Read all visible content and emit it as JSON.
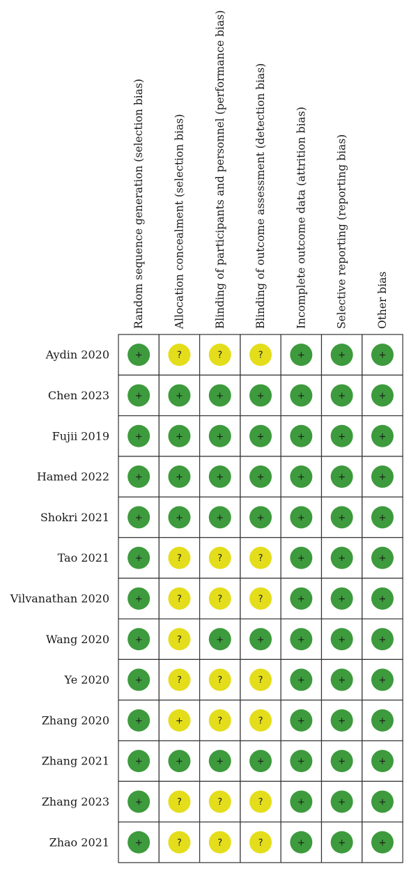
{
  "chart_data": {
    "type": "table",
    "columns": [
      "Random sequence generation (selection bias)",
      "Allocation concealment (selection bias)",
      "Blinding of participants and personnel (performance bias)",
      "Blinding of outcome assessment (detection bias)",
      "Incomplete outcome data (attrition bias)",
      "Selective reporting (reporting bias)",
      "Other bias"
    ],
    "rows": [
      {
        "study": "Aydin 2020",
        "ratings": [
          "low",
          "unclear",
          "unclear",
          "unclear",
          "low",
          "low",
          "low"
        ]
      },
      {
        "study": "Chen 2023",
        "ratings": [
          "low",
          "low",
          "low",
          "low",
          "low",
          "low",
          "low"
        ]
      },
      {
        "study": "Fujii 2019",
        "ratings": [
          "low",
          "low",
          "low",
          "low",
          "low",
          "low",
          "low"
        ]
      },
      {
        "study": "Hamed 2022",
        "ratings": [
          "low",
          "low",
          "low",
          "low",
          "low",
          "low",
          "low"
        ]
      },
      {
        "study": "Shokri 2021",
        "ratings": [
          "low",
          "low",
          "low",
          "low",
          "low",
          "low",
          "low"
        ]
      },
      {
        "study": "Tao 2021",
        "ratings": [
          "low",
          "unclear",
          "unclear",
          "unclear",
          "low",
          "low",
          "low"
        ]
      },
      {
        "study": "Vilvanathan 2020",
        "ratings": [
          "low",
          "unclear",
          "unclear",
          "unclear",
          "low",
          "low",
          "low"
        ]
      },
      {
        "study": "Wang 2020",
        "ratings": [
          "low",
          "unclear",
          "low",
          "low",
          "low",
          "low",
          "low"
        ]
      },
      {
        "study": "Ye 2020",
        "ratings": [
          "low",
          "unclear",
          "unclear",
          "unclear",
          "low",
          "low",
          "low"
        ]
      },
      {
        "study": "Zhang 2020",
        "ratings": [
          "low",
          "yellow-plus",
          "unclear",
          "unclear",
          "low",
          "low",
          "low"
        ]
      },
      {
        "study": "Zhang 2021",
        "ratings": [
          "low",
          "low",
          "low",
          "low",
          "low",
          "low",
          "low"
        ]
      },
      {
        "study": "Zhang 2023",
        "ratings": [
          "low",
          "unclear",
          "unclear",
          "unclear",
          "low",
          "low",
          "low"
        ]
      },
      {
        "study": "Zhao 2021",
        "ratings": [
          "low",
          "unclear",
          "unclear",
          "unclear",
          "low",
          "low",
          "low"
        ]
      }
    ],
    "legend": {
      "low": {
        "symbol": "+",
        "color": "#3d9a3d"
      },
      "unclear": {
        "symbol": "?",
        "color": "#e4dd1c"
      },
      "yellow-plus": {
        "symbol": "+",
        "color": "#e4dd1c"
      }
    }
  }
}
